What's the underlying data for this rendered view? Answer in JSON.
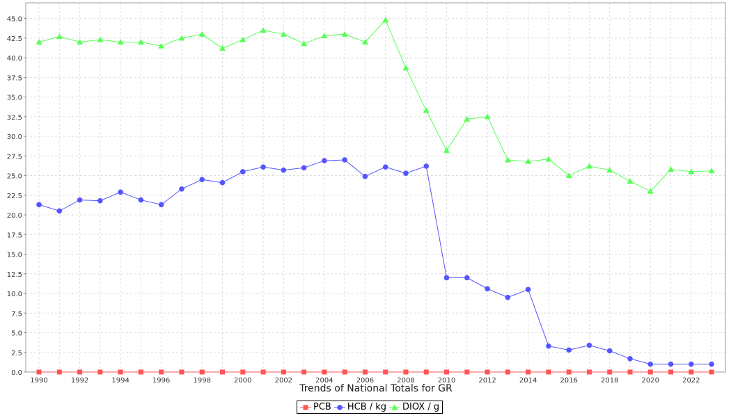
{
  "chart_data": {
    "type": "line",
    "xlabel": "Trends of National Totals for GR",
    "ylabel": "",
    "ylim": [
      0,
      47
    ],
    "xlim": [
      1989.35,
      2023.68
    ],
    "grid": true,
    "legend_position": "bottom",
    "y_ticks": [
      "0.0",
      "2.5",
      "5.0",
      "7.5",
      "10.0",
      "12.5",
      "15.0",
      "17.5",
      "20.0",
      "22.5",
      "25.0",
      "27.5",
      "30.0",
      "32.5",
      "35.0",
      "37.5",
      "40.0",
      "42.5",
      "45.0"
    ],
    "x_ticks": [
      "1990",
      "1992",
      "1994",
      "1996",
      "1998",
      "2000",
      "2002",
      "2004",
      "2006",
      "2008",
      "2010",
      "2012",
      "2014",
      "2016",
      "2018",
      "2020",
      "2022"
    ],
    "x": [
      1990,
      1991,
      1992,
      1993,
      1994,
      1995,
      1996,
      1997,
      1998,
      1999,
      2000,
      2001,
      2002,
      2003,
      2004,
      2005,
      2006,
      2007,
      2008,
      2009,
      2010,
      2011,
      2012,
      2013,
      2014,
      2015,
      2016,
      2017,
      2018,
      2019,
      2020,
      2021,
      2022,
      2023
    ],
    "series": [
      {
        "name": "PCB",
        "color": "#ff5555",
        "marker": "square",
        "values": [
          0,
          0,
          0,
          0,
          0,
          0,
          0,
          0,
          0,
          0,
          0,
          0,
          0,
          0,
          0,
          0,
          0,
          0,
          0,
          0,
          0,
          0,
          0,
          0,
          0,
          0,
          0,
          0,
          0,
          0,
          0,
          0,
          0,
          0
        ]
      },
      {
        "name": "HCB / kg",
        "color": "#5555ff",
        "marker": "circle",
        "values": [
          21.3,
          20.5,
          21.9,
          21.8,
          22.9,
          21.9,
          21.3,
          23.3,
          24.5,
          24.1,
          25.5,
          26.1,
          25.7,
          26.0,
          26.9,
          27.0,
          24.9,
          26.1,
          25.3,
          26.2,
          12.0,
          12.0,
          10.6,
          9.5,
          10.5,
          3.3,
          2.8,
          3.4,
          2.7,
          1.7,
          1.0,
          1.0,
          1.0,
          1.0
        ]
      },
      {
        "name": "DIOX / g",
        "color": "#55ff55",
        "marker": "triangle",
        "values": [
          42.0,
          42.7,
          42.0,
          42.3,
          42.0,
          42.0,
          41.5,
          42.5,
          43.0,
          41.2,
          42.3,
          43.5,
          43.0,
          41.8,
          42.8,
          43.0,
          42.0,
          44.8,
          38.7,
          33.3,
          28.2,
          32.2,
          32.5,
          27.0,
          26.8,
          27.1,
          25.0,
          26.2,
          25.7,
          24.3,
          23.0,
          25.8,
          25.5,
          25.6
        ]
      }
    ]
  }
}
